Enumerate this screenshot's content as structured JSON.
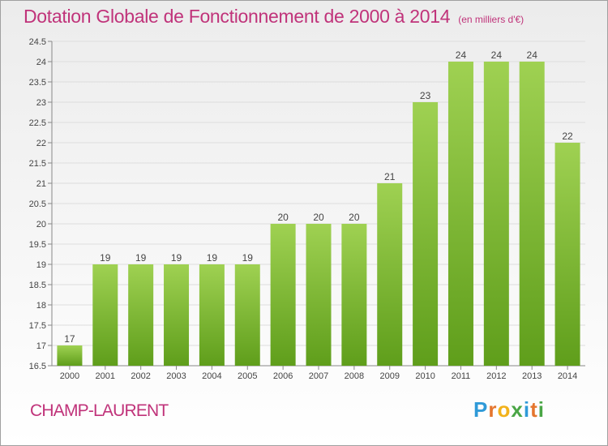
{
  "header": {
    "title": "Dotation Globale de Fonctionnement de 2000 à 2014",
    "subtitle": "(en milliers d'€)"
  },
  "footer": {
    "commune": "CHAMP-LAURENT",
    "logo": {
      "letters": [
        "P",
        "r",
        "o",
        "x",
        "i",
        "t",
        "i"
      ],
      "colors": [
        "#2f9ad8",
        "#e5762e",
        "#f2b21b",
        "#4aa646",
        "#2f9ad8",
        "#e5762e",
        "#4aa646"
      ]
    }
  },
  "chart_data": {
    "type": "bar",
    "title": "Dotation Globale de Fonctionnement de 2000 à 2014",
    "subtitle": "(en milliers d'€)",
    "categories": [
      "2000",
      "2001",
      "2002",
      "2003",
      "2004",
      "2005",
      "2006",
      "2007",
      "2008",
      "2009",
      "2010",
      "2011",
      "2012",
      "2013",
      "2014"
    ],
    "values": [
      17,
      19,
      19,
      19,
      19,
      19,
      20,
      20,
      20,
      21,
      23,
      24,
      24,
      24,
      22
    ],
    "data_labels": [
      "17",
      "19",
      "19",
      "19",
      "19",
      "19",
      "20",
      "20",
      "20",
      "21",
      "23",
      "24",
      "24",
      "24",
      "22"
    ],
    "ylim": [
      16.5,
      24.5
    ],
    "yticks": [
      16.5,
      17,
      17.5,
      18,
      18.5,
      19,
      19.5,
      20,
      20.5,
      21,
      21.5,
      22,
      22.5,
      23,
      23.5,
      24,
      24.5
    ],
    "ytick_labels": [
      "16.5",
      "17",
      "17.5",
      "18",
      "18.5",
      "19",
      "19.5",
      "20",
      "20.5",
      "21",
      "21.5",
      "22",
      "22.5",
      "23",
      "23.5",
      "24",
      "24.5"
    ],
    "grid": true,
    "bar_color_top": "#9fd152",
    "bar_color_bottom": "#5f9e1b",
    "legend": false
  }
}
